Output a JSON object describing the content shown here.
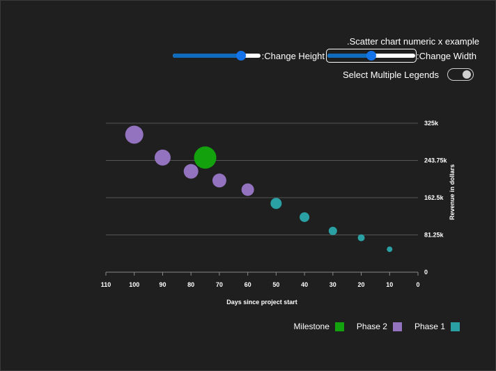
{
  "header": {
    "title": ".Scatter chart numeric x example",
    "height_label": ":Change Height",
    "width_label": ":Change Width",
    "height_slider_value": 0.78,
    "width_slider_value": 0.5,
    "legend_toggle_label": "Select Multiple Legends",
    "legend_toggle_on": false
  },
  "chart_data": {
    "type": "scatter",
    "xlabel": "Days since project start",
    "ylabel": "Revenue in dollars",
    "xlim": [
      110,
      0
    ],
    "ylim": [
      0,
      325000
    ],
    "x_reversed": true,
    "y_axis_position": "right",
    "x_ticks": [
      "110",
      "100",
      "90",
      "80",
      "70",
      "60",
      "50",
      "40",
      "30",
      "20",
      "10",
      "0"
    ],
    "y_ticks": [
      "0",
      "81.25k",
      "162.5k",
      "243.75k",
      "325k"
    ],
    "grid": "horizontal",
    "legend_position": "bottom-right",
    "series": [
      {
        "name": "Phase 1",
        "color": "#2aa0a4",
        "points": [
          {
            "x": 50,
            "y": 150000,
            "size": 8
          },
          {
            "x": 40,
            "y": 120000,
            "size": 7
          },
          {
            "x": 30,
            "y": 90000,
            "size": 6
          },
          {
            "x": 20,
            "y": 75000,
            "size": 5
          },
          {
            "x": 10,
            "y": 50000,
            "size": 4
          }
        ]
      },
      {
        "name": "Phase 2",
        "color": "#9373c0",
        "points": [
          {
            "x": 100,
            "y": 300000,
            "size": 13
          },
          {
            "x": 90,
            "y": 250000,
            "size": 11.5
          },
          {
            "x": 80,
            "y": 220000,
            "size": 10.5
          },
          {
            "x": 70,
            "y": 200000,
            "size": 10
          },
          {
            "x": 60,
            "y": 180000,
            "size": 9
          }
        ]
      },
      {
        "name": "Milestone",
        "color": "#13a10e",
        "points": [
          {
            "x": 75,
            "y": 250000,
            "size": 16
          }
        ]
      }
    ],
    "legend": [
      "Milestone",
      "Phase 2",
      "Phase 1"
    ]
  }
}
